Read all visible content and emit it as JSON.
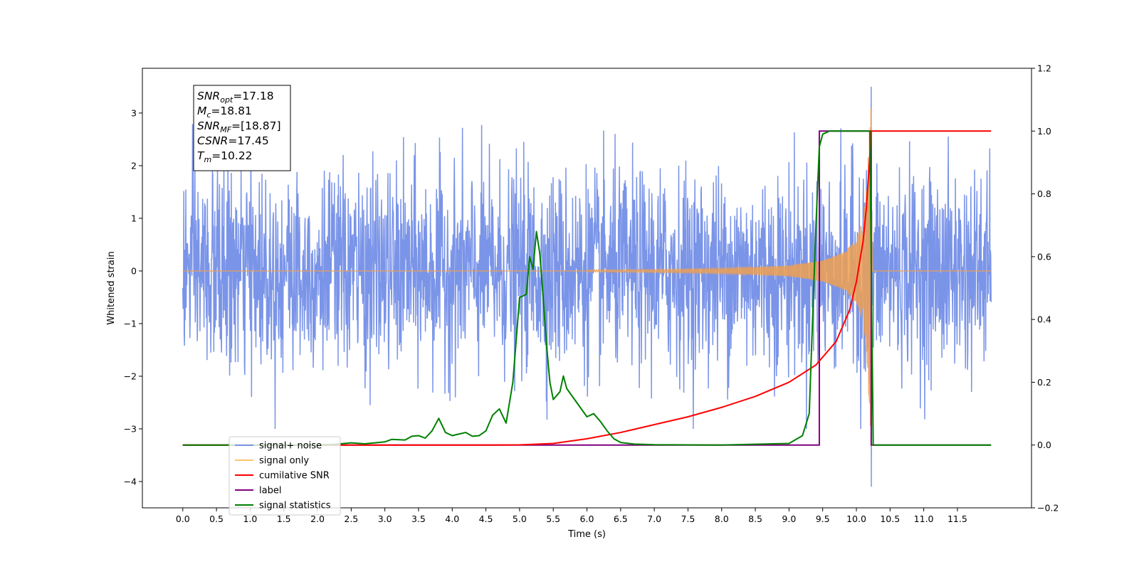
{
  "chart_data": {
    "type": "line",
    "xlabel": "Time (s)",
    "ylabel_left": "Whitened strain",
    "xlim": [
      -0.6,
      12.6
    ],
    "ylim_left": [
      -4.5,
      3.85
    ],
    "ylim_right": [
      -0.2,
      1.2
    ],
    "x_ticks": [
      "0.0",
      "0.5",
      "1.0",
      "1.5",
      "2.0",
      "2.5",
      "3.0",
      "3.5",
      "4.0",
      "4.5",
      "5.0",
      "5.5",
      "6.0",
      "6.5",
      "7.0",
      "7.5",
      "8.0",
      "8.5",
      "9.0",
      "9.5",
      "10.0",
      "10.5",
      "11.0",
      "11.5"
    ],
    "y_ticks_left": [
      "3",
      "2",
      "1",
      "0",
      "−1",
      "−2",
      "−3",
      "−4"
    ],
    "y_ticks_right": [
      "1.2",
      "1.0",
      "0.8",
      "0.6",
      "0.4",
      "0.2",
      "0.0",
      "−0.2"
    ],
    "info_box": [
      {
        "sym": "SNR",
        "sub": "opt",
        "value": "=17.18"
      },
      {
        "sym": "M",
        "sub": "c",
        "value": "=18.81"
      },
      {
        "sym": "SNR",
        "sub": "MF",
        "value": "=[18.87]"
      },
      {
        "sym": "CSNR",
        "sub": "",
        "value": "=17.45"
      },
      {
        "sym": "T",
        "sub": "m",
        "value": "=10.22"
      }
    ],
    "legend": {
      "placement": "lower-left",
      "entries": [
        {
          "label": "signal+ noise",
          "color": "#7a96e8"
        },
        {
          "label": "signal only",
          "color": "#ffc36e"
        },
        {
          "label": "cumilative SNR",
          "color": "#ff0000"
        },
        {
          "label": "label",
          "color": "#800080"
        },
        {
          "label": "signal statistics",
          "color": "#008000"
        }
      ]
    },
    "series": [
      {
        "name": "signal+ noise",
        "axis": "left",
        "color": "#6f8be6",
        "x_range": [
          0.0,
          12.0
        ],
        "band_abs": 1.3,
        "typical_extreme": [
          -2.3,
          2.3
        ],
        "max_spike": {
          "x": 10.22,
          "y": 3.5
        },
        "min_spike": {
          "x": 10.22,
          "y": -4.1
        }
      },
      {
        "name": "signal only",
        "axis": "left",
        "color": "#f0a050",
        "chirp": {
          "x_start": 0.0,
          "x_merger": 10.22,
          "x_end": 12.0,
          "envelope_x": [
            0,
            5,
            6,
            7,
            8,
            9,
            9.5,
            9.8,
            10.0,
            10.1,
            10.15,
            10.2,
            10.22
          ],
          "envelope_y": [
            0.005,
            0.01,
            0.02,
            0.03,
            0.05,
            0.1,
            0.2,
            0.35,
            0.6,
            1.0,
            1.6,
            2.8,
            3.25
          ]
        }
      },
      {
        "name": "cumilative SNR",
        "axis": "right",
        "color": "#ff0000",
        "x": [
          0,
          4.5,
          5.0,
          5.5,
          6.0,
          6.5,
          7.0,
          7.5,
          8.0,
          8.5,
          9.0,
          9.4,
          9.7,
          9.9,
          10.0,
          10.1,
          10.15,
          10.2,
          10.22,
          12.0
        ],
        "y": [
          0.0,
          0.0,
          0.0005,
          0.005,
          0.02,
          0.04,
          0.065,
          0.09,
          0.12,
          0.155,
          0.2,
          0.255,
          0.33,
          0.43,
          0.52,
          0.65,
          0.76,
          0.92,
          1.0,
          1.0
        ]
      },
      {
        "name": "label",
        "axis": "right",
        "color": "#800080",
        "x": [
          0,
          9.45,
          9.45,
          10.22,
          10.22,
          12.0
        ],
        "y": [
          0,
          0,
          1,
          1,
          0,
          0
        ]
      },
      {
        "name": "signal statistics",
        "axis": "right",
        "color": "#008000",
        "x": [
          0,
          1.5,
          2.0,
          2.3,
          2.5,
          2.7,
          3.0,
          3.1,
          3.3,
          3.4,
          3.5,
          3.6,
          3.7,
          3.8,
          3.9,
          4.0,
          4.1,
          4.2,
          4.3,
          4.4,
          4.5,
          4.6,
          4.7,
          4.8,
          4.9,
          5.0,
          5.1,
          5.15,
          5.2,
          5.25,
          5.3,
          5.35,
          5.4,
          5.45,
          5.5,
          5.6,
          5.65,
          5.7,
          5.8,
          5.9,
          6.0,
          6.1,
          6.2,
          6.3,
          6.4,
          6.5,
          6.7,
          7.0,
          8.0,
          9.0,
          9.2,
          9.3,
          9.4,
          9.45,
          9.5,
          9.6,
          10.2,
          10.25,
          12.0
        ],
        "y": [
          0,
          0,
          0,
          0.003,
          0.007,
          0.004,
          0.01,
          0.018,
          0.016,
          0.028,
          0.03,
          0.022,
          0.045,
          0.085,
          0.04,
          0.03,
          0.035,
          0.04,
          0.028,
          0.03,
          0.045,
          0.095,
          0.115,
          0.07,
          0.2,
          0.47,
          0.48,
          0.6,
          0.56,
          0.68,
          0.61,
          0.47,
          0.32,
          0.2,
          0.145,
          0.17,
          0.22,
          0.18,
          0.15,
          0.12,
          0.09,
          0.1,
          0.075,
          0.045,
          0.02,
          0.008,
          0.003,
          0.001,
          0,
          0.005,
          0.03,
          0.1,
          0.7,
          0.95,
          0.99,
          1.0,
          1.0,
          0.0,
          0.0
        ]
      }
    ]
  }
}
